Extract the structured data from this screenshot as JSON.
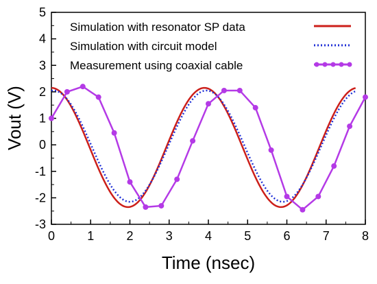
{
  "chart_data": {
    "type": "line",
    "xlabel": "Time (nsec)",
    "ylabel": "Vout (V)",
    "xlim": [
      0,
      8
    ],
    "ylim": [
      -3,
      5
    ],
    "xticks": [
      "0",
      "1",
      "2",
      "3",
      "4",
      "5",
      "6",
      "7",
      "8"
    ],
    "yticks": [
      "5",
      "4",
      "3",
      "2",
      "1",
      "0",
      "-1",
      "-2",
      "-3"
    ],
    "grid": false,
    "legend_position": "top",
    "series": [
      {
        "name": "Simulation with resonator SP data",
        "color": "#cc1f1a",
        "style": "solid",
        "model": {
          "amplitude": 2.25,
          "offset": -0.1,
          "period": 3.9,
          "phase": 0.0,
          "x_start": 0.0,
          "x_end": 7.75
        }
      },
      {
        "name": "Simulation with circuit model",
        "color": "#1f2fd6",
        "style": "dotted",
        "model": {
          "amplitude": 2.1,
          "offset": -0.05,
          "period": 3.9,
          "phase": 0.05,
          "x_start": 0.0,
          "x_end": 7.75
        }
      },
      {
        "name": "Measurement using coaxial cable",
        "color": "#b43ae6",
        "style": "line-markers",
        "x": [
          0.0,
          0.4,
          0.8,
          1.2,
          1.6,
          2.0,
          2.4,
          2.8,
          3.2,
          3.6,
          4.0,
          4.4,
          4.8,
          5.2,
          5.6,
          6.0,
          6.4,
          6.8,
          7.2,
          7.6,
          8.0
        ],
        "y": [
          1.0,
          2.0,
          2.2,
          1.8,
          0.45,
          -1.4,
          -2.35,
          -2.3,
          -1.3,
          0.15,
          1.55,
          2.05,
          2.05,
          1.4,
          -0.2,
          -1.95,
          -2.45,
          -1.95,
          -0.8,
          0.7,
          1.8
        ]
      }
    ]
  }
}
